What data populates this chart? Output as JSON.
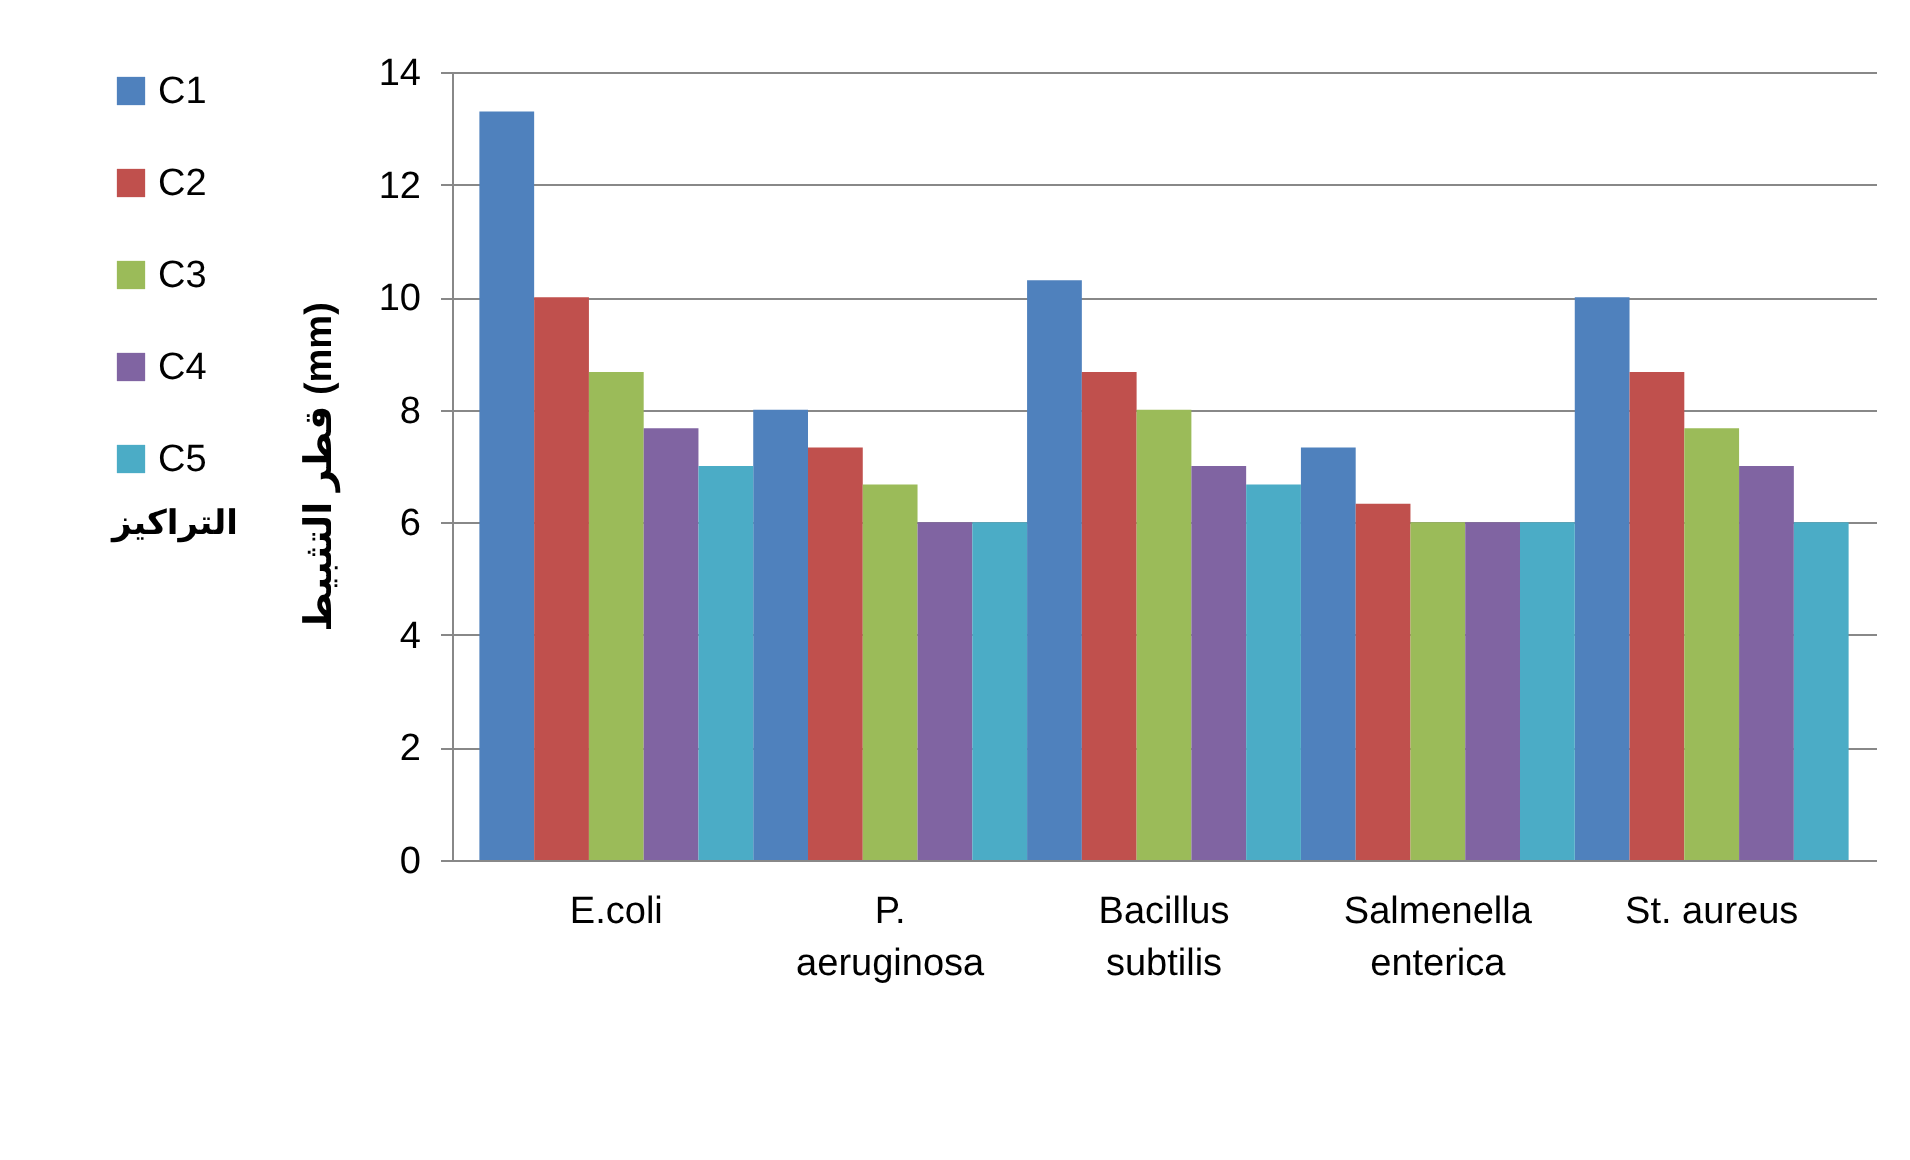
{
  "chart_data": {
    "type": "bar",
    "ylabel": "قطر التثبيط (mm)",
    "legend_title": "التراكيز",
    "categories": [
      "E.coli",
      "P. aeruginosa",
      "Bacillus subtilis",
      "Salmenella enterica",
      "St. aureus"
    ],
    "series": [
      {
        "name": "C1",
        "color": "#4f81bd",
        "values": [
          13.3,
          8,
          10.3,
          7.33,
          10
        ]
      },
      {
        "name": "C2",
        "color": "#c0504d",
        "values": [
          10,
          7.33,
          8.67,
          6.33,
          8.67
        ]
      },
      {
        "name": "C3",
        "color": "#9bbb59",
        "values": [
          8.67,
          6.67,
          8,
          6,
          7.67
        ]
      },
      {
        "name": "C4",
        "color": "#8064a2",
        "values": [
          7.67,
          6,
          7,
          6,
          7
        ]
      },
      {
        "name": "C5",
        "color": "#4bacc6",
        "values": [
          7,
          6,
          6.67,
          6,
          6
        ]
      }
    ],
    "ylim": [
      0,
      14
    ],
    "yticks": [
      0,
      2,
      4,
      6,
      8,
      10,
      12,
      14
    ],
    "grid": "y",
    "legend": "left"
  }
}
